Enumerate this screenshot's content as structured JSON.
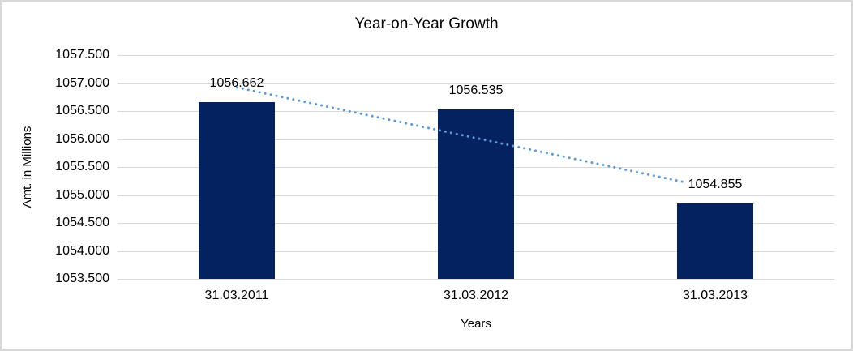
{
  "chart_data": {
    "type": "bar",
    "title": "Year-on-Year Growth",
    "xlabel": "Years",
    "ylabel": "Amt. in Millions",
    "categories": [
      "31.03.2011",
      "31.03.2012",
      "31.03.2013"
    ],
    "values": [
      1056.662,
      1056.535,
      1054.855
    ],
    "data_labels": [
      "1056.662",
      "1056.535",
      "1054.855"
    ],
    "ylim": [
      1053.5,
      1057.5
    ],
    "ytick_step": 0.5,
    "ytick_labels": [
      "1057.500",
      "1057.000",
      "1056.500",
      "1056.000",
      "1055.500",
      "1055.000",
      "1054.500",
      "1054.000",
      "1053.500"
    ],
    "grid": true,
    "legend": "none",
    "colors": {
      "bar": "#042160",
      "trendline": "#5B9BD5",
      "gridline": "#D9D9D9",
      "text": "#000000"
    },
    "trendline": {
      "type": "linear",
      "style": "dotted"
    }
  }
}
